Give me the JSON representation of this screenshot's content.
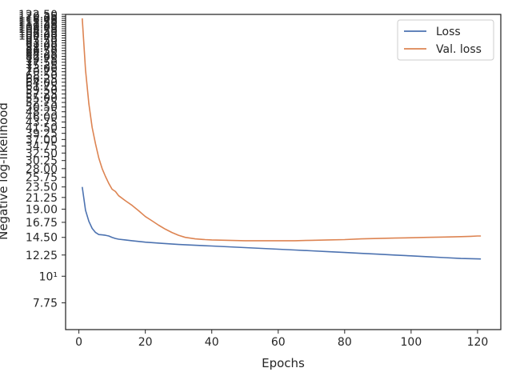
{
  "chart_data": {
    "type": "line",
    "xlabel": "Epochs",
    "ylabel": "Negative log-likelihood",
    "xlim": [
      -4,
      127
    ],
    "ylim": [
      6.0,
      122.5
    ],
    "yscale": "log",
    "grid": false,
    "legend_position": "top-right",
    "x_ticks": [
      0,
      20,
      40,
      60,
      80,
      100,
      120
    ],
    "x_tick_labels": [
      "0",
      "20",
      "40",
      "60",
      "80",
      "100",
      "120"
    ],
    "y_ticks": [
      7.75,
      10,
      12.25,
      14.5,
      16.75,
      19.0,
      21.25,
      23.5,
      25.75,
      28.0,
      30.25,
      32.5,
      34.75,
      37.0,
      39.25,
      41.5,
      43.75,
      46.0,
      48.25,
      50.5,
      52.75,
      55.0,
      57.25,
      59.5,
      61.75,
      64.0,
      66.25,
      68.5,
      70.75,
      73.0,
      75.25,
      77.5,
      79.75,
      82.0,
      84.25,
      86.5,
      88.75,
      91.0,
      93.25,
      95.5,
      97.75,
      100.0,
      102.25,
      104.5,
      106.75,
      109.0,
      111.25,
      113.5,
      115.75,
      118.0,
      120.25,
      122.5
    ],
    "y_tick_labels": [
      "7.75",
      "10¹",
      "12.25",
      "14.50",
      "16.75",
      "19.00",
      "21.25",
      "23.50",
      "25.75",
      "28.00",
      "30.25",
      "32.50",
      "34.75",
      "37.00",
      "39.25",
      "41.50",
      "43.75",
      "46.00",
      "48.25",
      "50.50",
      "52.75",
      "55.00",
      "57.25",
      "59.50",
      "61.75",
      "64.00",
      "66.25",
      "68.50",
      "70.75",
      "73.00",
      "75.25",
      "77.50",
      "79.75",
      "82.00",
      "84.25",
      "86.50",
      "88.75",
      "91.00",
      "93.25",
      "95.50",
      "97.75",
      "100.00",
      "102.25",
      "104.50",
      "106.75",
      "109.00",
      "111.25",
      "113.50",
      "115.75",
      "118.00",
      "120.25",
      "122.50"
    ],
    "series": [
      {
        "name": "Loss",
        "color": "#4c72b0",
        "x": [
          1,
          2,
          3,
          4,
          5,
          6,
          7,
          8,
          9,
          10,
          11,
          12,
          14,
          16,
          18,
          20,
          25,
          30,
          35,
          40,
          45,
          50,
          55,
          60,
          65,
          70,
          75,
          80,
          85,
          90,
          95,
          100,
          105,
          110,
          115,
          121
        ],
        "y": [
          23.5,
          18.8,
          16.9,
          15.8,
          15.2,
          14.9,
          14.85,
          14.8,
          14.7,
          14.5,
          14.35,
          14.25,
          14.15,
          14.05,
          13.95,
          13.85,
          13.7,
          13.55,
          13.45,
          13.35,
          13.25,
          13.15,
          13.05,
          12.95,
          12.85,
          12.75,
          12.65,
          12.55,
          12.45,
          12.35,
          12.25,
          12.15,
          12.05,
          11.95,
          11.85,
          11.8
        ]
      },
      {
        "name": "Val. loss",
        "color": "#dd8452",
        "x": [
          1,
          2,
          3,
          4,
          5,
          6,
          7,
          8,
          9,
          10,
          11,
          12,
          14,
          16,
          18,
          20,
          22,
          24,
          26,
          28,
          30,
          32,
          35,
          38,
          40,
          45,
          50,
          55,
          60,
          65,
          70,
          75,
          80,
          85,
          90,
          95,
          100,
          105,
          110,
          115,
          118,
          120,
          121
        ],
        "y": [
          118.0,
          72.0,
          52.0,
          41.5,
          35.5,
          31.0,
          28.0,
          26.0,
          24.3,
          23.0,
          22.5,
          21.6,
          20.6,
          19.7,
          18.7,
          17.7,
          17.0,
          16.3,
          15.7,
          15.2,
          14.8,
          14.5,
          14.3,
          14.2,
          14.15,
          14.1,
          14.05,
          14.05,
          14.05,
          14.05,
          14.1,
          14.15,
          14.2,
          14.3,
          14.35,
          14.4,
          14.45,
          14.5,
          14.55,
          14.6,
          14.65,
          14.7,
          14.7
        ]
      }
    ]
  }
}
